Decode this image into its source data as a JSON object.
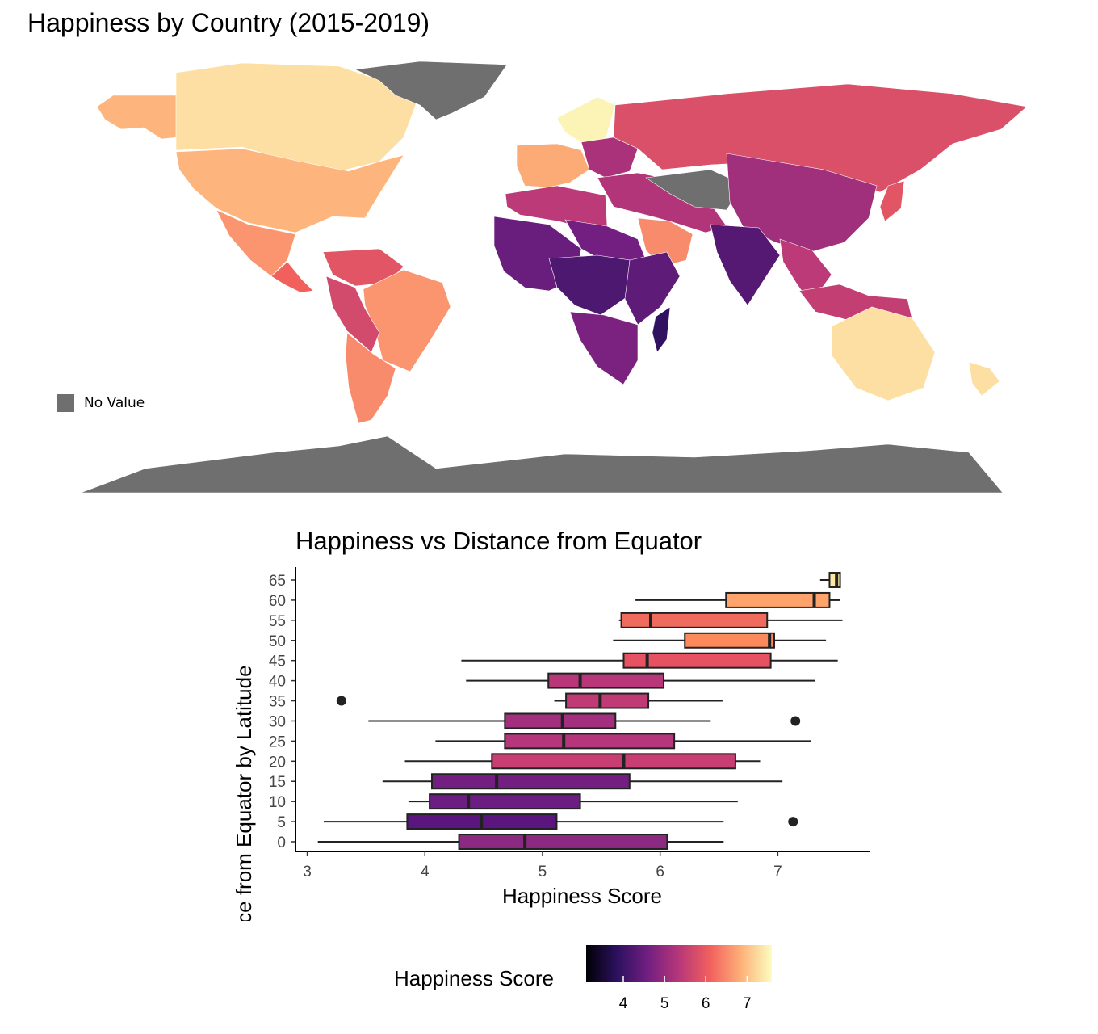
{
  "map": {
    "title": "Happiness by Country (2015-2019)",
    "no_value_label": "No Value",
    "no_value_color": "#6f6f6f",
    "regions": [
      {
        "name": "Alaska",
        "score": 6.9
      },
      {
        "name": "Canada",
        "score": 7.3
      },
      {
        "name": "USA",
        "score": 6.9
      },
      {
        "name": "Mexico",
        "score": 6.6
      },
      {
        "name": "Central America",
        "score": 6.1
      },
      {
        "name": "Greenland",
        "score": null
      },
      {
        "name": "Colombia / Venezuela",
        "score": 5.9
      },
      {
        "name": "Brazil",
        "score": 6.6
      },
      {
        "name": "Peru / Bolivia",
        "score": 5.7
      },
      {
        "name": "Argentina / Chile",
        "score": 6.5
      },
      {
        "name": "Scandinavia",
        "score": 7.5
      },
      {
        "name": "Western Europe",
        "score": 6.8
      },
      {
        "name": "Eastern Europe",
        "score": 5.2
      },
      {
        "name": "Russia",
        "score": 5.8
      },
      {
        "name": "Middle East",
        "score": 5.3
      },
      {
        "name": "Saudi Arabia",
        "score": 6.5
      },
      {
        "name": "Central Asia",
        "score": null
      },
      {
        "name": "China / Mongolia",
        "score": 5.1
      },
      {
        "name": "India",
        "score": 4.3
      },
      {
        "name": "Southeast Asia",
        "score": 5.4
      },
      {
        "name": "Japan",
        "score": 5.9
      },
      {
        "name": "Indonesia / Philippines",
        "score": 5.5
      },
      {
        "name": "North Africa",
        "score": 5.4
      },
      {
        "name": "Egypt / Libya",
        "score": 4.6
      },
      {
        "name": "West Africa",
        "score": 4.5
      },
      {
        "name": "Central Africa",
        "score": 4.2
      },
      {
        "name": "East Africa",
        "score": 4.4
      },
      {
        "name": "Southern Africa",
        "score": 4.7
      },
      {
        "name": "Madagascar",
        "score": 3.9
      },
      {
        "name": "Australia",
        "score": 7.3
      },
      {
        "name": "New Zealand",
        "score": 7.3
      },
      {
        "name": "Antarctica",
        "score": null
      }
    ]
  },
  "chart_data": {
    "type": "boxplot",
    "orientation": "horizontal",
    "title": "Happiness vs Distance from Equator",
    "xlabel": "Happiness Score",
    "ylabel": "Distance from Equator by Latitude",
    "xlim": [
      2.9,
      7.78
    ],
    "x_ticks": [
      "3",
      "4",
      "5",
      "6",
      "7"
    ],
    "y_ticks": [
      "0",
      "5",
      "10",
      "15",
      "20",
      "25",
      "30",
      "35",
      "40",
      "45",
      "50",
      "55",
      "60",
      "65"
    ],
    "groups": [
      {
        "y": 0,
        "whisker_low": 3.09,
        "q1": 4.29,
        "median": 4.85,
        "q3": 6.06,
        "whisker_high": 6.54,
        "outliers": [],
        "fill": "#8c2981"
      },
      {
        "y": 5,
        "whisker_low": 3.14,
        "q1": 3.85,
        "median": 4.48,
        "q3": 5.12,
        "whisker_high": 6.54,
        "outliers": [
          7.13
        ],
        "fill": "#5a167e"
      },
      {
        "y": 10,
        "whisker_low": 3.86,
        "q1": 4.04,
        "median": 4.37,
        "q3": 5.32,
        "whisker_high": 6.66,
        "outliers": [],
        "fill": "#6b1d81"
      },
      {
        "y": 15,
        "whisker_low": 3.64,
        "q1": 4.06,
        "median": 4.61,
        "q3": 5.74,
        "whisker_high": 7.04,
        "outliers": [],
        "fill": "#721f81"
      },
      {
        "y": 20,
        "whisker_low": 3.83,
        "q1": 4.57,
        "median": 5.69,
        "q3": 6.64,
        "whisker_high": 6.85,
        "outliers": [],
        "fill": "#c83e73"
      },
      {
        "y": 25,
        "whisker_low": 4.09,
        "q1": 4.68,
        "median": 5.18,
        "q3": 6.12,
        "whisker_high": 7.28,
        "outliers": [],
        "fill": "#b5367a"
      },
      {
        "y": 30,
        "whisker_low": 3.52,
        "q1": 4.68,
        "median": 5.17,
        "q3": 5.62,
        "whisker_high": 6.43,
        "outliers": [
          7.15
        ],
        "fill": "#a3307e"
      },
      {
        "y": 35,
        "whisker_low": 5.1,
        "q1": 5.2,
        "median": 5.49,
        "q3": 5.9,
        "whisker_high": 6.53,
        "outliers": [
          3.29
        ],
        "fill": "#c03a76"
      },
      {
        "y": 40,
        "whisker_low": 4.35,
        "q1": 5.05,
        "median": 5.32,
        "q3": 6.03,
        "whisker_high": 7.32,
        "outliers": [],
        "fill": "#b73779"
      },
      {
        "y": 45,
        "whisker_low": 4.31,
        "q1": 5.69,
        "median": 5.89,
        "q3": 6.94,
        "whisker_high": 7.51,
        "outliers": [],
        "fill": "#e75263"
      },
      {
        "y": 50,
        "whisker_low": 5.6,
        "q1": 6.21,
        "median": 6.93,
        "q3": 6.97,
        "whisker_high": 7.41,
        "outliers": [],
        "fill": "#fa8a5c"
      },
      {
        "y": 55,
        "whisker_low": 5.65,
        "q1": 5.67,
        "median": 5.92,
        "q3": 6.91,
        "whisker_high": 7.55,
        "outliers": [],
        "fill": "#ef6b5d"
      },
      {
        "y": 60,
        "whisker_low": 5.79,
        "q1": 6.56,
        "median": 7.31,
        "q3": 7.44,
        "whisker_high": 7.53,
        "outliers": [],
        "fill": "#fea36c"
      },
      {
        "y": 65,
        "whisker_low": 7.36,
        "q1": 7.44,
        "median": 7.5,
        "q3": 7.53,
        "whisker_high": 7.53,
        "outliers": [],
        "fill": "#fde9a4"
      }
    ]
  },
  "legend": {
    "title": "Happiness Score",
    "ticks": [
      "4",
      "5",
      "6",
      "7"
    ],
    "range": [
      3.1,
      7.6
    ],
    "colors": [
      "#000004",
      "#2c115f",
      "#721f81",
      "#b73779",
      "#f1605d",
      "#feb078",
      "#fcfdbf"
    ]
  }
}
